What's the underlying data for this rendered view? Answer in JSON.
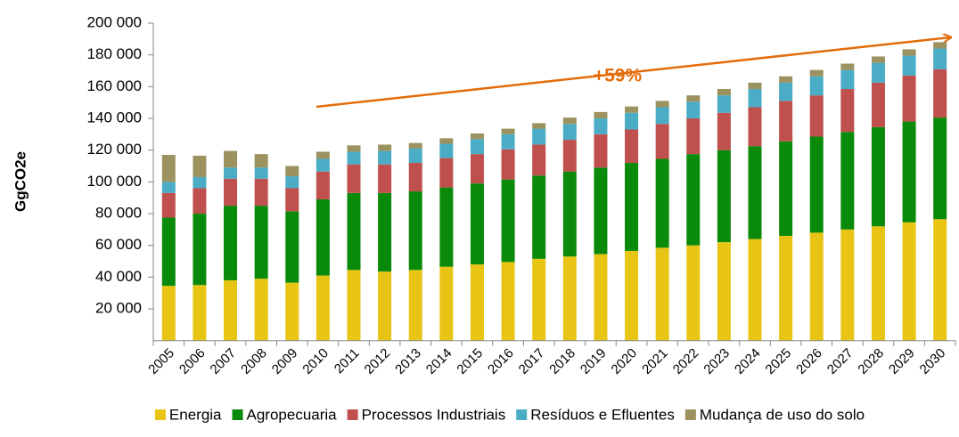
{
  "chart_data": {
    "type": "bar",
    "stacked": true,
    "y_label": "GgCO2e",
    "annotation": "+59%",
    "categories": [
      "2005",
      "2006",
      "2007",
      "2008",
      "2009",
      "2010",
      "2011",
      "2012",
      "2013",
      "2014",
      "2015",
      "2016",
      "2017",
      "2018",
      "2019",
      "2020",
      "2021",
      "2022",
      "2023",
      "2024",
      "2025",
      "2026",
      "2027",
      "2028",
      "2029",
      "2030"
    ],
    "series": [
      {
        "name": "Energia",
        "color": "#e8c514",
        "values": [
          34500,
          35000,
          38000,
          39000,
          36500,
          41000,
          44500,
          43500,
          44500,
          46500,
          48000,
          49500,
          51500,
          53000,
          54500,
          56500,
          58500,
          60000,
          62000,
          64000,
          66000,
          68000,
          70000,
          72000,
          74500,
          76500
        ]
      },
      {
        "name": "Agropecuaria",
        "color": "#0a8a0a",
        "values": [
          43000,
          45000,
          47000,
          46000,
          45000,
          48000,
          48500,
          49500,
          49500,
          50000,
          51000,
          52000,
          52500,
          53500,
          54500,
          55500,
          56000,
          57500,
          58000,
          58500,
          59500,
          60500,
          61500,
          62500,
          63500,
          64000
        ]
      },
      {
        "name": "Processos Industriais",
        "color": "#c0504d",
        "values": [
          15500,
          16000,
          17000,
          17000,
          14500,
          17500,
          18000,
          18000,
          18000,
          18500,
          18500,
          19000,
          19500,
          20000,
          21000,
          21000,
          22000,
          22500,
          23500,
          24500,
          25500,
          26000,
          27000,
          28000,
          29000,
          30500
        ]
      },
      {
        "name": "Resíduos e Efluentes",
        "color": "#4bacc6",
        "values": [
          7000,
          7000,
          7000,
          7000,
          7500,
          8000,
          8000,
          8500,
          9000,
          9000,
          9500,
          9500,
          10000,
          10000,
          10000,
          10500,
          10500,
          10500,
          11000,
          11500,
          11500,
          12000,
          12000,
          12500,
          12500,
          13000
        ]
      },
      {
        "name": "Mudança de uso do solo",
        "color": "#9c9260",
        "values": [
          17000,
          13500,
          10500,
          8500,
          6500,
          4500,
          4000,
          4000,
          3500,
          3500,
          3500,
          3500,
          3500,
          4000,
          4000,
          4000,
          4000,
          4000,
          4000,
          4000,
          4000,
          4000,
          4000,
          4000,
          4000,
          4000
        ]
      }
    ],
    "ylim": [
      0,
      200000
    ],
    "yticks": [
      {
        "value": 20000,
        "label": "20 000"
      },
      {
        "value": 40000,
        "label": "40 000"
      },
      {
        "value": 60000,
        "label": "60 000"
      },
      {
        "value": 80000,
        "label": "80 000"
      },
      {
        "value": 100000,
        "label": "100 000"
      },
      {
        "value": 120000,
        "label": "120 000"
      },
      {
        "value": 140000,
        "label": "140 000"
      },
      {
        "value": 160000,
        "label": "160 000"
      },
      {
        "value": 180000,
        "label": "180 000"
      },
      {
        "value": 200000,
        "label": "200 000"
      }
    ],
    "legend": "bottom"
  }
}
